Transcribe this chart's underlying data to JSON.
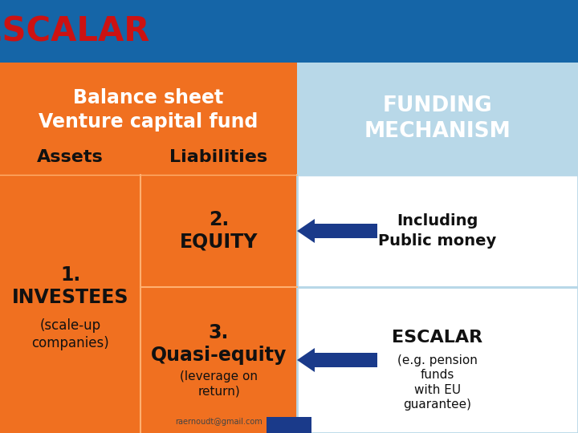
{
  "header_bg": "#1565A7",
  "header_text": "ESCALAR",
  "header_text_color": "#CC1212",
  "orange": "#F07020",
  "light_blue": "#B8D8E8",
  "white": "#FFFFFF",
  "dark_blue": "#1A3A8A",
  "dark_text": "#111111",
  "balance_title": "Balance sheet\nVenture capital fund",
  "assets_label": "Assets",
  "liabilities_label": "Liabilities",
  "funding_label": "FUNDING\nMECHANISM",
  "investees_main": "1.\nINVESTEES",
  "investees_sub": "(scale-up\ncompanies)",
  "equity_text": "2.\nEQUITY",
  "quasi_main": "3.\nQuasi-equity",
  "quasi_sub": "(leverage on\nreturn)",
  "quasi_email": "raernoudt@gmail.com",
  "including_text": "Including\nPublic money",
  "escalar_label": "ESCALAR",
  "escalar_sub": "(e.g. pension\nfunds\nwith EU\nguarantee)"
}
